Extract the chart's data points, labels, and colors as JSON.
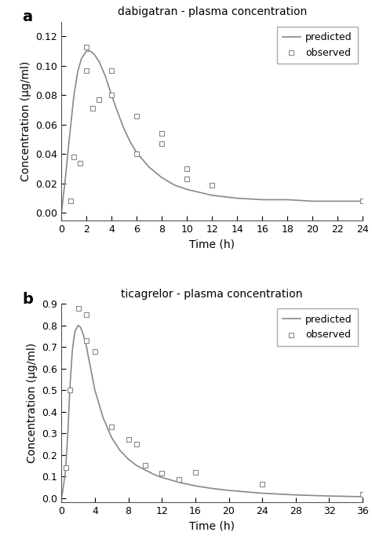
{
  "panel_a": {
    "title": "dabigatran - plasma concentration",
    "xlabel": "Time (h)",
    "ylabel": "Concentration (μg/ml)",
    "xlim": [
      0,
      24
    ],
    "ylim": [
      -0.005,
      0.13
    ],
    "xticks": [
      0,
      2,
      4,
      6,
      8,
      10,
      12,
      14,
      16,
      18,
      20,
      22,
      24
    ],
    "yticks": [
      0.0,
      0.02,
      0.04,
      0.06,
      0.08,
      0.1,
      0.12
    ],
    "observed_x": [
      0.75,
      1.0,
      1.5,
      2.0,
      2.0,
      2.5,
      3.0,
      3.0,
      4.0,
      4.0,
      6.0,
      6.0,
      8.0,
      8.0,
      10.0,
      10.0,
      12.0,
      24.0
    ],
    "observed_y": [
      0.008,
      0.038,
      0.034,
      0.097,
      0.113,
      0.071,
      0.077,
      0.077,
      0.097,
      0.08,
      0.066,
      0.04,
      0.054,
      0.047,
      0.03,
      0.023,
      0.019,
      0.008
    ],
    "predicted_x": [
      0,
      0.3,
      0.6,
      1.0,
      1.3,
      1.6,
      2.0,
      2.3,
      2.6,
      3.0,
      3.5,
      4.0,
      4.5,
      5.0,
      5.5,
      6.0,
      7.0,
      8.0,
      9.0,
      10.0,
      11.0,
      12.0,
      14.0,
      16.0,
      18.0,
      20.0,
      22.0,
      24.0
    ],
    "predicted_y": [
      0.0,
      0.022,
      0.048,
      0.08,
      0.096,
      0.105,
      0.11,
      0.11,
      0.108,
      0.103,
      0.093,
      0.08,
      0.068,
      0.057,
      0.048,
      0.041,
      0.031,
      0.024,
      0.019,
      0.016,
      0.014,
      0.012,
      0.01,
      0.009,
      0.009,
      0.008,
      0.008,
      0.008
    ]
  },
  "panel_b": {
    "title": "ticagrelor - plasma concentration",
    "xlabel": "Time (h)",
    "ylabel": "Concentration (μg/ml)",
    "xlim": [
      0,
      36
    ],
    "ylim": [
      -0.02,
      0.9
    ],
    "xticks": [
      0,
      4,
      8,
      12,
      16,
      20,
      24,
      28,
      32,
      36
    ],
    "yticks": [
      0.0,
      0.1,
      0.2,
      0.3,
      0.4,
      0.5,
      0.6,
      0.7,
      0.8,
      0.9
    ],
    "observed_x": [
      0.5,
      1.0,
      2.0,
      3.0,
      3.0,
      4.0,
      6.0,
      8.0,
      9.0,
      10.0,
      12.0,
      14.0,
      16.0,
      24.0,
      36.0
    ],
    "observed_y": [
      0.14,
      0.5,
      0.88,
      0.73,
      0.85,
      0.68,
      0.33,
      0.27,
      0.25,
      0.15,
      0.115,
      0.085,
      0.12,
      0.065,
      0.015
    ],
    "predicted_x": [
      0,
      0.2,
      0.5,
      0.8,
      1.0,
      1.3,
      1.6,
      2.0,
      2.3,
      2.6,
      3.0,
      3.5,
      4.0,
      5.0,
      6.0,
      7.0,
      8.0,
      9.0,
      10.0,
      11.0,
      12.0,
      14.0,
      16.0,
      18.0,
      20.0,
      24.0,
      28.0,
      32.0,
      36.0
    ],
    "predicted_y": [
      0.0,
      0.04,
      0.13,
      0.32,
      0.5,
      0.68,
      0.77,
      0.8,
      0.79,
      0.76,
      0.7,
      0.6,
      0.5,
      0.37,
      0.28,
      0.22,
      0.18,
      0.15,
      0.13,
      0.11,
      0.095,
      0.073,
      0.056,
      0.044,
      0.035,
      0.022,
      0.014,
      0.009,
      0.006
    ]
  },
  "line_color": "#888888",
  "marker_edgecolor": "#888888",
  "marker_facecolor": "white",
  "label_fontsize": 10,
  "title_fontsize": 10,
  "tick_fontsize": 9,
  "legend_fontsize": 9,
  "line_width": 1.2,
  "marker_size": 5,
  "panel_label_fontsize": 14
}
